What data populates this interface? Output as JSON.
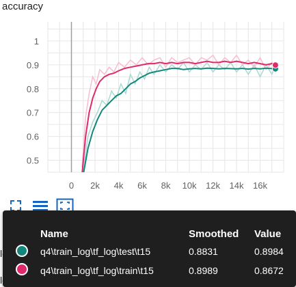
{
  "chart_title": "accuracy",
  "toolbar": {
    "fullscreen_icon": "fullscreen-icon",
    "data_toggle_icon": "lines-icon",
    "fit_domain_icon": "fit-domain-icon",
    "accent_color": "#1565c0"
  },
  "background_labels": [
    "learning_rate",
    "loss"
  ],
  "tooltip": {
    "headers": {
      "name": "Name",
      "smoothed": "Smoothed",
      "value": "Value"
    },
    "rows": [
      {
        "color": "#12877a",
        "name": "q4\\train_log\\tf_log\\test\\t15",
        "smoothed": "0.8831",
        "value": "0.8984"
      },
      {
        "color": "#e0296b",
        "name": "q4\\train_log\\tf_log\\train\\t15",
        "smoothed": "0.8989",
        "value": "0.8672"
      }
    ]
  },
  "chart_data": {
    "type": "line",
    "title": "accuracy",
    "xlabel": "",
    "ylabel": "",
    "x_ticks": [
      "0",
      "2k",
      "4k",
      "6k",
      "8k",
      "10k",
      "12k",
      "14k",
      "16k"
    ],
    "y_ticks": [
      "0.5",
      "0.6",
      "0.7",
      "0.8",
      "0.9",
      "1"
    ],
    "xlim": [
      -2000,
      18000
    ],
    "ylim": [
      0.45,
      1.08
    ],
    "grid": true,
    "series": [
      {
        "name": "q4\\train_log\\tf_log\\test\\t15",
        "color": "#12877a",
        "raw_color": "#a9d9d2",
        "smoothed": [
          [
            1000,
            0.44
          ],
          [
            1400,
            0.55
          ],
          [
            1800,
            0.62
          ],
          [
            2200,
            0.67
          ],
          [
            2600,
            0.71
          ],
          [
            3000,
            0.73
          ],
          [
            3400,
            0.75
          ],
          [
            3800,
            0.77
          ],
          [
            4200,
            0.78
          ],
          [
            4600,
            0.8
          ],
          [
            5000,
            0.82
          ],
          [
            5400,
            0.83
          ],
          [
            5800,
            0.845
          ],
          [
            6200,
            0.855
          ],
          [
            6600,
            0.865
          ],
          [
            7000,
            0.87
          ],
          [
            7500,
            0.875
          ],
          [
            8000,
            0.88
          ],
          [
            8500,
            0.885
          ],
          [
            9000,
            0.885
          ],
          [
            9500,
            0.88
          ],
          [
            10000,
            0.883
          ],
          [
            10500,
            0.885
          ],
          [
            11000,
            0.883
          ],
          [
            11500,
            0.886
          ],
          [
            12000,
            0.885
          ],
          [
            12500,
            0.883
          ],
          [
            13000,
            0.885
          ],
          [
            13500,
            0.884
          ],
          [
            14000,
            0.883
          ],
          [
            14500,
            0.885
          ],
          [
            15000,
            0.882
          ],
          [
            15500,
            0.885
          ],
          [
            16000,
            0.883
          ],
          [
            16500,
            0.886
          ],
          [
            17000,
            0.884
          ],
          [
            17300,
            0.883
          ]
        ],
        "raw": [
          [
            1000,
            0.45
          ],
          [
            1400,
            0.6
          ],
          [
            1800,
            0.66
          ],
          [
            2200,
            0.7
          ],
          [
            2600,
            0.75
          ],
          [
            3000,
            0.73
          ],
          [
            3400,
            0.79
          ],
          [
            3800,
            0.76
          ],
          [
            4200,
            0.82
          ],
          [
            4600,
            0.78
          ],
          [
            5000,
            0.86
          ],
          [
            5400,
            0.82
          ],
          [
            5800,
            0.87
          ],
          [
            6200,
            0.84
          ],
          [
            6600,
            0.89
          ],
          [
            7000,
            0.86
          ],
          [
            7500,
            0.9
          ],
          [
            8000,
            0.87
          ],
          [
            8500,
            0.9
          ],
          [
            9000,
            0.88
          ],
          [
            9500,
            0.91
          ],
          [
            10000,
            0.87
          ],
          [
            10500,
            0.9
          ],
          [
            11000,
            0.88
          ],
          [
            11500,
            0.91
          ],
          [
            12000,
            0.87
          ],
          [
            12500,
            0.9
          ],
          [
            13000,
            0.88
          ],
          [
            13500,
            0.91
          ],
          [
            14000,
            0.87
          ],
          [
            14500,
            0.9
          ],
          [
            15000,
            0.86
          ],
          [
            15500,
            0.9
          ],
          [
            16000,
            0.85
          ],
          [
            16500,
            0.9
          ],
          [
            17000,
            0.86
          ],
          [
            17300,
            0.8984
          ]
        ]
      },
      {
        "name": "q4\\train_log\\tf_log\\train\\t15",
        "color": "#e0296b",
        "raw_color": "#f7bdd0",
        "smoothed": [
          [
            900,
            0.44
          ],
          [
            1200,
            0.6
          ],
          [
            1500,
            0.7
          ],
          [
            1800,
            0.76
          ],
          [
            2100,
            0.8
          ],
          [
            2400,
            0.83
          ],
          [
            2800,
            0.85
          ],
          [
            3200,
            0.86
          ],
          [
            3600,
            0.865
          ],
          [
            4000,
            0.875
          ],
          [
            4500,
            0.885
          ],
          [
            5000,
            0.89
          ],
          [
            5500,
            0.895
          ],
          [
            6000,
            0.9
          ],
          [
            6500,
            0.905
          ],
          [
            7000,
            0.905
          ],
          [
            7500,
            0.91
          ],
          [
            8000,
            0.905
          ],
          [
            8500,
            0.91
          ],
          [
            9000,
            0.905
          ],
          [
            9500,
            0.91
          ],
          [
            10000,
            0.91
          ],
          [
            10500,
            0.905
          ],
          [
            11000,
            0.91
          ],
          [
            11500,
            0.915
          ],
          [
            12000,
            0.91
          ],
          [
            12500,
            0.91
          ],
          [
            13000,
            0.915
          ],
          [
            13500,
            0.91
          ],
          [
            14000,
            0.915
          ],
          [
            14500,
            0.91
          ],
          [
            15000,
            0.905
          ],
          [
            15500,
            0.91
          ],
          [
            16000,
            0.905
          ],
          [
            16500,
            0.9
          ],
          [
            17000,
            0.905
          ],
          [
            17300,
            0.8989
          ]
        ],
        "raw": [
          [
            900,
            0.47
          ],
          [
            1200,
            0.68
          ],
          [
            1500,
            0.78
          ],
          [
            1800,
            0.85
          ],
          [
            2100,
            0.82
          ],
          [
            2400,
            0.88
          ],
          [
            2800,
            0.86
          ],
          [
            3200,
            0.89
          ],
          [
            3600,
            0.87
          ],
          [
            4000,
            0.91
          ],
          [
            4500,
            0.89
          ],
          [
            5000,
            0.92
          ],
          [
            5500,
            0.9
          ],
          [
            6000,
            0.93
          ],
          [
            6500,
            0.9
          ],
          [
            7000,
            0.92
          ],
          [
            7500,
            0.93
          ],
          [
            8000,
            0.89
          ],
          [
            8500,
            0.93
          ],
          [
            9000,
            0.91
          ],
          [
            9500,
            0.92
          ],
          [
            10000,
            0.93
          ],
          [
            10500,
            0.9
          ],
          [
            11000,
            0.93
          ],
          [
            11500,
            0.92
          ],
          [
            12000,
            0.94
          ],
          [
            12500,
            0.9
          ],
          [
            13000,
            0.93
          ],
          [
            13500,
            0.91
          ],
          [
            14000,
            0.94
          ],
          [
            14500,
            0.9
          ],
          [
            15000,
            0.92
          ],
          [
            15500,
            0.89
          ],
          [
            16000,
            0.93
          ],
          [
            16500,
            0.88
          ],
          [
            17000,
            0.91
          ],
          [
            17300,
            0.8672
          ]
        ]
      }
    ]
  }
}
